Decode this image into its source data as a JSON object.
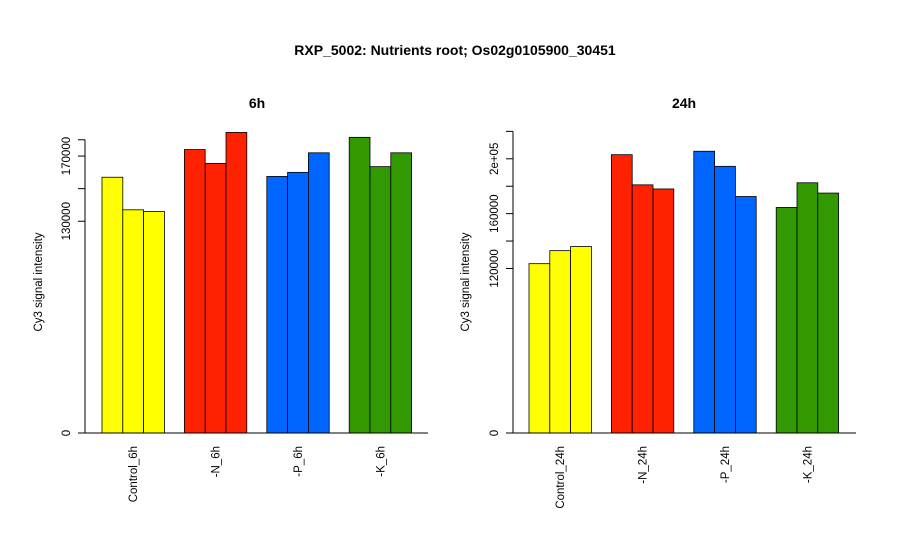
{
  "main_title": "RXP_5002: Nutrients root; Os02g0105900_30451",
  "chart_data": [
    {
      "type": "bar",
      "title": "6h",
      "ylabel": "Cy3 signal intensity",
      "xlabel": "",
      "ylim": [
        0,
        186000
      ],
      "yticks": [
        0,
        130000,
        150000,
        170000,
        180000
      ],
      "ytick_labels": [
        "0",
        "130000",
        "",
        "170000",
        ""
      ],
      "grid": false,
      "categories": [
        "Control_6h",
        "-N_6h",
        "-P_6h",
        "-K_6h"
      ],
      "colors": [
        "#ffff00",
        "#ff2200",
        "#0066ff",
        "#339900"
      ],
      "groups": [
        {
          "category": "Control_6h",
          "values": [
            157000,
            137000,
            136000
          ]
        },
        {
          "category": "-N_6h",
          "values": [
            174000,
            165500,
            184500
          ]
        },
        {
          "category": "-P_6h",
          "values": [
            157500,
            160000,
            172000
          ]
        },
        {
          "category": "-K_6h",
          "values": [
            181500,
            163500,
            172000
          ]
        }
      ]
    },
    {
      "type": "bar",
      "title": "24h",
      "ylabel": "Cy3 signal intensity",
      "xlabel": "",
      "ylim": [
        0,
        221000
      ],
      "yticks": [
        0,
        120000,
        140000,
        160000,
        180000,
        200000,
        220000
      ],
      "ytick_labels": [
        "0",
        "120000",
        "",
        "160000",
        "",
        "2e+05",
        ""
      ],
      "grid": false,
      "categories": [
        "Control_24h",
        "-N_24h",
        "-P_24h",
        "-K_24h"
      ],
      "colors": [
        "#ffff00",
        "#ff2200",
        "#0066ff",
        "#339900"
      ],
      "groups": [
        {
          "category": "Control_24h",
          "values": [
            123500,
            133000,
            136000
          ]
        },
        {
          "category": "-N_24h",
          "values": [
            203000,
            181000,
            178000
          ]
        },
        {
          "category": "-P_24h",
          "values": [
            205500,
            194500,
            172500
          ]
        },
        {
          "category": "-K_24h",
          "values": [
            164500,
            182500,
            175000
          ]
        }
      ]
    }
  ]
}
